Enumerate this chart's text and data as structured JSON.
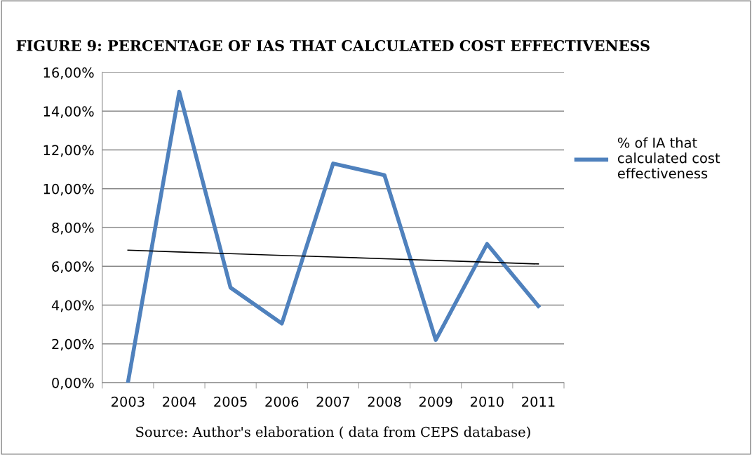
{
  "chart_data": {
    "type": "line",
    "title": "FIGURE 9: PERCENTAGE OF IAS THAT CALCULATED COST EFFECTIVENESS",
    "categories": [
      "2003",
      "2004",
      "2005",
      "2006",
      "2007",
      "2008",
      "2009",
      "2010",
      "2011"
    ],
    "series": [
      {
        "name": "% of IA that\ncalculated cost\neffectiveness",
        "color": "#4f81bd",
        "values": [
          0,
          15.0,
          4.9,
          3.05,
          11.3,
          10.7,
          2.2,
          7.15,
          3.95
        ]
      },
      {
        "type": "line",
        "color": "#000000",
        "values": [
          6.83,
          6.74,
          6.65,
          6.56,
          6.48,
          6.39,
          6.3,
          6.21,
          6.12
        ]
      }
    ],
    "ylim": [
      0,
      16
    ],
    "yticks": [
      {
        "value": 0,
        "label": "0,00%"
      },
      {
        "value": 2,
        "label": "2,00%"
      },
      {
        "value": 4,
        "label": "4,00%"
      },
      {
        "value": 6,
        "label": "6,00%"
      },
      {
        "value": 8,
        "label": "8,00%"
      },
      {
        "value": 10,
        "label": "10,00%"
      },
      {
        "value": 12,
        "label": "12,00%"
      },
      {
        "value": 14,
        "label": "14,00%"
      },
      {
        "value": 16,
        "label": "16,00%"
      }
    ],
    "grid": "y",
    "legend": "right",
    "marker": "none",
    "annotations": [
      "Source: Author's elaboration ( data from CEPS database)"
    ]
  }
}
